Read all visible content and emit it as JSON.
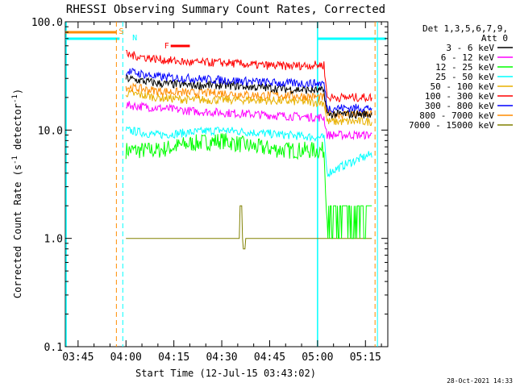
{
  "chart_data": {
    "type": "line",
    "title": "RHESSI Observing Summary Count Rates, Corrected",
    "xlabel": "Start Time (12-Jul-15 03:43:02)",
    "ylabel_prefix": "Corrected Count Rate (s",
    "ylabel_sup1": "-1",
    "ylabel_mid": " detector",
    "ylabel_sup2": "-1",
    "ylabel_suffix": ")",
    "y_scale": "log",
    "ylim": [
      0.1,
      100.0
    ],
    "xlim": [
      "03:41",
      "05:22"
    ],
    "x_ticks": [
      "03:45",
      "04:00",
      "04:15",
      "04:30",
      "04:45",
      "05:00",
      "05:15"
    ],
    "y_ticks": [
      "0.1",
      "1.0",
      "10.0",
      "100.0"
    ],
    "legend_position": "top-right",
    "legend_header": [
      "Det 1,3,5,6,7,9,",
      "Att 0"
    ],
    "series": [
      {
        "name": "3 - 6 keV",
        "color": "#000000",
        "x": [
          "04:00",
          "04:10",
          "04:20",
          "04:30",
          "04:40",
          "04:50",
          "05:02",
          "05:03",
          "05:10",
          "05:17"
        ],
        "values": [
          30,
          27,
          26,
          26,
          25,
          24,
          23,
          14,
          14,
          14
        ]
      },
      {
        "name": "6 - 12 keV",
        "color": "#ff00ff",
        "x": [
          "04:00",
          "04:10",
          "04:20",
          "04:30",
          "04:40",
          "04:50",
          "05:02",
          "05:03",
          "05:10",
          "05:17"
        ],
        "values": [
          17,
          16,
          15,
          14.5,
          14,
          13.5,
          13,
          9,
          9,
          9
        ]
      },
      {
        "name": "12 - 25 keV",
        "color": "#00ff00",
        "x": [
          "04:00",
          "04:10",
          "04:20",
          "04:30",
          "04:40",
          "04:50",
          "05:02",
          "05:03",
          "05:10",
          "05:17"
        ],
        "values": [
          6.5,
          6.5,
          7.5,
          8,
          7,
          6.5,
          6.5,
          1.5,
          1.5,
          1.5
        ]
      },
      {
        "name": "25 - 50 keV",
        "color": "#00ffff",
        "x": [
          "04:00",
          "04:10",
          "04:20",
          "04:30",
          "04:40",
          "04:50",
          "05:02",
          "05:03",
          "05:10",
          "05:17"
        ],
        "values": [
          10,
          9,
          9.5,
          10,
          9.5,
          9,
          8.5,
          4,
          5,
          6
        ]
      },
      {
        "name": "50 - 100 keV",
        "color": "#e8b000",
        "x": [
          "04:00",
          "04:10",
          "04:20",
          "04:30",
          "04:40",
          "04:50",
          "05:02",
          "05:03",
          "05:10",
          "05:17"
        ],
        "values": [
          22,
          20,
          19,
          19,
          19,
          18.5,
          18,
          12,
          12,
          12
        ]
      },
      {
        "name": "100 - 300 keV",
        "color": "#ff0000",
        "x": [
          "04:00",
          "04:10",
          "04:20",
          "04:30",
          "04:40",
          "04:50",
          "05:02",
          "05:03",
          "05:10",
          "05:17"
        ],
        "values": [
          50,
          45,
          42,
          42,
          40,
          39,
          40,
          20,
          20,
          20
        ]
      },
      {
        "name": "300 - 800 keV",
        "color": "#0000ff",
        "x": [
          "04:00",
          "04:10",
          "04:20",
          "04:30",
          "04:40",
          "04:50",
          "05:02",
          "05:03",
          "05:10",
          "05:17"
        ],
        "values": [
          35,
          31,
          30,
          29,
          28,
          27,
          27,
          16,
          16,
          16
        ]
      },
      {
        "name": "800 - 7000 keV",
        "color": "#ff8c00",
        "x": [
          "04:00",
          "04:10",
          "04:20",
          "04:30",
          "04:40",
          "04:50",
          "05:02",
          "05:03",
          "05:10",
          "05:17"
        ],
        "values": [
          25,
          23,
          22,
          22,
          21,
          21,
          20,
          14,
          14,
          14
        ]
      },
      {
        "name": "7000 - 15000 keV",
        "color": "#808000",
        "x": [
          "04:00",
          "04:10",
          "04:20",
          "04:30",
          "04:40",
          "04:50",
          "05:02",
          "05:03",
          "05:10",
          "05:17"
        ],
        "values": [
          1.0,
          1.0,
          1.0,
          1.0,
          1.0,
          1.0,
          1.0,
          1.0,
          1.0,
          1.0
        ]
      }
    ],
    "annotations": [
      {
        "label": "S",
        "color": "#ff8c00"
      },
      {
        "label": "N",
        "color": "#00ffff"
      },
      {
        "label": "F",
        "color": "#ff0000"
      }
    ],
    "timestamp": "28-Oct-2021 14:33"
  }
}
